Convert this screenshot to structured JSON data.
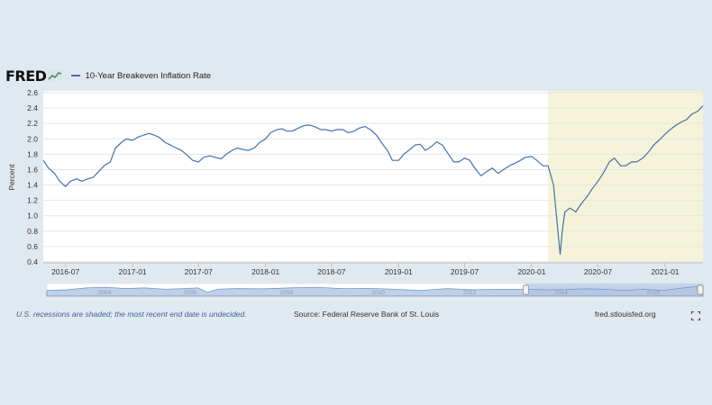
{
  "header": {
    "logo_text": "FRED",
    "series_label": "10-Year Breakeven Inflation Rate"
  },
  "footer": {
    "note": "U.S. recessions are shaded; the most recent end date is undecided.",
    "source": "Source: Federal Reserve Bank of St. Louis",
    "site": "fred.stlouisfed.org"
  },
  "colors": {
    "line": "#4572a7",
    "recession": "#f5f3d9",
    "background": "#e1e9f0",
    "navigator_fill": "#b0c4e0"
  },
  "icons": [
    "fred-chart-icon",
    "fullscreen-icon"
  ],
  "chart_data": {
    "type": "line",
    "ylabel": "Percent",
    "ylim": [
      0.4,
      2.6
    ],
    "yticks": [
      "0.4",
      "0.6",
      "0.8",
      "1.0",
      "1.2",
      "1.4",
      "1.6",
      "1.8",
      "2.0",
      "2.2",
      "2.4",
      "2.6"
    ],
    "xlim": [
      "2016-05-01",
      "2021-04-15"
    ],
    "xticks": [
      {
        "date": "2016-07-01",
        "label": "2016-07"
      },
      {
        "date": "2017-01-01",
        "label": "2017-01"
      },
      {
        "date": "2017-07-01",
        "label": "2017-07"
      },
      {
        "date": "2018-01-01",
        "label": "2018-01"
      },
      {
        "date": "2018-07-01",
        "label": "2018-07"
      },
      {
        "date": "2019-01-01",
        "label": "2019-01"
      },
      {
        "date": "2019-07-01",
        "label": "2019-07"
      },
      {
        "date": "2020-01-01",
        "label": "2020-01"
      },
      {
        "date": "2020-07-01",
        "label": "2020-07"
      },
      {
        "date": "2021-01-01",
        "label": "2021-01"
      }
    ],
    "recession": {
      "start": "2020-02-15",
      "end": "2021-04-15"
    },
    "grid": true,
    "legend": "top-left",
    "series": [
      {
        "name": "10-Year Breakeven Inflation Rate",
        "points": [
          [
            "2016-05-01",
            1.72
          ],
          [
            "2016-05-15",
            1.62
          ],
          [
            "2016-06-01",
            1.55
          ],
          [
            "2016-06-15",
            1.45
          ],
          [
            "2016-07-01",
            1.38
          ],
          [
            "2016-07-15",
            1.45
          ],
          [
            "2016-08-01",
            1.48
          ],
          [
            "2016-08-15",
            1.45
          ],
          [
            "2016-09-01",
            1.48
          ],
          [
            "2016-09-15",
            1.5
          ],
          [
            "2016-10-01",
            1.58
          ],
          [
            "2016-10-15",
            1.65
          ],
          [
            "2016-11-01",
            1.7
          ],
          [
            "2016-11-15",
            1.88
          ],
          [
            "2016-12-01",
            1.95
          ],
          [
            "2016-12-15",
            2.0
          ],
          [
            "2017-01-01",
            1.98
          ],
          [
            "2017-01-15",
            2.02
          ],
          [
            "2017-02-01",
            2.05
          ],
          [
            "2017-02-15",
            2.07
          ],
          [
            "2017-03-01",
            2.05
          ],
          [
            "2017-03-15",
            2.02
          ],
          [
            "2017-04-01",
            1.95
          ],
          [
            "2017-04-15",
            1.92
          ],
          [
            "2017-05-01",
            1.88
          ],
          [
            "2017-05-15",
            1.85
          ],
          [
            "2017-06-01",
            1.78
          ],
          [
            "2017-06-15",
            1.72
          ],
          [
            "2017-07-01",
            1.7
          ],
          [
            "2017-07-15",
            1.76
          ],
          [
            "2017-08-01",
            1.78
          ],
          [
            "2017-08-15",
            1.76
          ],
          [
            "2017-09-01",
            1.74
          ],
          [
            "2017-09-15",
            1.8
          ],
          [
            "2017-10-01",
            1.85
          ],
          [
            "2017-10-15",
            1.88
          ],
          [
            "2017-11-01",
            1.86
          ],
          [
            "2017-11-15",
            1.85
          ],
          [
            "2017-12-01",
            1.88
          ],
          [
            "2017-12-15",
            1.95
          ],
          [
            "2018-01-01",
            2.0
          ],
          [
            "2018-01-15",
            2.08
          ],
          [
            "2018-02-01",
            2.12
          ],
          [
            "2018-02-15",
            2.13
          ],
          [
            "2018-03-01",
            2.1
          ],
          [
            "2018-03-15",
            2.1
          ],
          [
            "2018-04-01",
            2.14
          ],
          [
            "2018-04-15",
            2.17
          ],
          [
            "2018-05-01",
            2.18
          ],
          [
            "2018-05-15",
            2.16
          ],
          [
            "2018-06-01",
            2.12
          ],
          [
            "2018-06-15",
            2.12
          ],
          [
            "2018-07-01",
            2.1
          ],
          [
            "2018-07-15",
            2.12
          ],
          [
            "2018-08-01",
            2.12
          ],
          [
            "2018-08-15",
            2.08
          ],
          [
            "2018-09-01",
            2.1
          ],
          [
            "2018-09-15",
            2.14
          ],
          [
            "2018-10-01",
            2.16
          ],
          [
            "2018-10-15",
            2.12
          ],
          [
            "2018-11-01",
            2.05
          ],
          [
            "2018-11-15",
            1.95
          ],
          [
            "2018-12-01",
            1.85
          ],
          [
            "2018-12-15",
            1.72
          ],
          [
            "2019-01-01",
            1.72
          ],
          [
            "2019-01-15",
            1.8
          ],
          [
            "2019-02-01",
            1.86
          ],
          [
            "2019-02-15",
            1.92
          ],
          [
            "2019-03-01",
            1.93
          ],
          [
            "2019-03-15",
            1.85
          ],
          [
            "2019-04-01",
            1.9
          ],
          [
            "2019-04-15",
            1.96
          ],
          [
            "2019-05-01",
            1.92
          ],
          [
            "2019-05-15",
            1.82
          ],
          [
            "2019-06-01",
            1.7
          ],
          [
            "2019-06-15",
            1.7
          ],
          [
            "2019-07-01",
            1.75
          ],
          [
            "2019-07-15",
            1.72
          ],
          [
            "2019-08-01",
            1.6
          ],
          [
            "2019-08-15",
            1.52
          ],
          [
            "2019-09-01",
            1.58
          ],
          [
            "2019-09-15",
            1.62
          ],
          [
            "2019-10-01",
            1.55
          ],
          [
            "2019-10-15",
            1.6
          ],
          [
            "2019-11-01",
            1.65
          ],
          [
            "2019-11-15",
            1.68
          ],
          [
            "2019-12-01",
            1.72
          ],
          [
            "2019-12-15",
            1.76
          ],
          [
            "2020-01-01",
            1.77
          ],
          [
            "2020-01-15",
            1.72
          ],
          [
            "2020-02-01",
            1.65
          ],
          [
            "2020-02-15",
            1.65
          ],
          [
            "2020-03-01",
            1.4
          ],
          [
            "2020-03-10",
            0.95
          ],
          [
            "2020-03-19",
            0.5
          ],
          [
            "2020-03-25",
            0.8
          ],
          [
            "2020-04-01",
            1.05
          ],
          [
            "2020-04-15",
            1.1
          ],
          [
            "2020-05-01",
            1.05
          ],
          [
            "2020-05-15",
            1.15
          ],
          [
            "2020-06-01",
            1.25
          ],
          [
            "2020-06-15",
            1.35
          ],
          [
            "2020-07-01",
            1.45
          ],
          [
            "2020-07-15",
            1.55
          ],
          [
            "2020-08-01",
            1.7
          ],
          [
            "2020-08-15",
            1.75
          ],
          [
            "2020-09-01",
            1.65
          ],
          [
            "2020-09-15",
            1.65
          ],
          [
            "2020-10-01",
            1.7
          ],
          [
            "2020-10-15",
            1.7
          ],
          [
            "2020-11-01",
            1.75
          ],
          [
            "2020-11-15",
            1.82
          ],
          [
            "2020-12-01",
            1.92
          ],
          [
            "2020-12-15",
            1.98
          ],
          [
            "2021-01-01",
            2.06
          ],
          [
            "2021-01-15",
            2.12
          ],
          [
            "2021-02-01",
            2.18
          ],
          [
            "2021-02-15",
            2.22
          ],
          [
            "2021-03-01",
            2.25
          ],
          [
            "2021-03-15",
            2.32
          ],
          [
            "2021-04-01",
            2.36
          ],
          [
            "2021-04-15",
            2.43
          ]
        ]
      }
    ],
    "navigator": {
      "points": [
        [
          0.0,
          0.55
        ],
        [
          0.03,
          0.5
        ],
        [
          0.06,
          0.35
        ],
        [
          0.09,
          0.3
        ],
        [
          0.12,
          0.4
        ],
        [
          0.15,
          0.35
        ],
        [
          0.18,
          0.45
        ],
        [
          0.21,
          0.4
        ],
        [
          0.23,
          0.35
        ],
        [
          0.245,
          0.7
        ],
        [
          0.26,
          0.45
        ],
        [
          0.29,
          0.4
        ],
        [
          0.33,
          0.42
        ],
        [
          0.37,
          0.35
        ],
        [
          0.41,
          0.3
        ],
        [
          0.45,
          0.4
        ],
        [
          0.49,
          0.38
        ],
        [
          0.53,
          0.45
        ],
        [
          0.57,
          0.55
        ],
        [
          0.61,
          0.4
        ],
        [
          0.65,
          0.5
        ],
        [
          0.69,
          0.45
        ],
        [
          0.73,
          0.45
        ],
        [
          0.76,
          0.5
        ],
        [
          0.79,
          0.48
        ],
        [
          0.82,
          0.42
        ],
        [
          0.85,
          0.45
        ],
        [
          0.88,
          0.55
        ],
        [
          0.91,
          0.45
        ],
        [
          0.94,
          0.55
        ],
        [
          0.97,
          0.35
        ],
        [
          1.0,
          0.2
        ]
      ],
      "year_labels": [
        {
          "pos": 0.088,
          "label": "2004"
        },
        {
          "pos": 0.218,
          "label": "2006"
        },
        {
          "pos": 0.365,
          "label": "2008"
        },
        {
          "pos": 0.505,
          "label": "2010"
        },
        {
          "pos": 0.644,
          "label": "2012"
        },
        {
          "pos": 0.784,
          "label": "2014"
        },
        {
          "pos": 0.924,
          "label": "2016"
        }
      ],
      "selection": [
        0.73,
        1.0
      ]
    }
  }
}
